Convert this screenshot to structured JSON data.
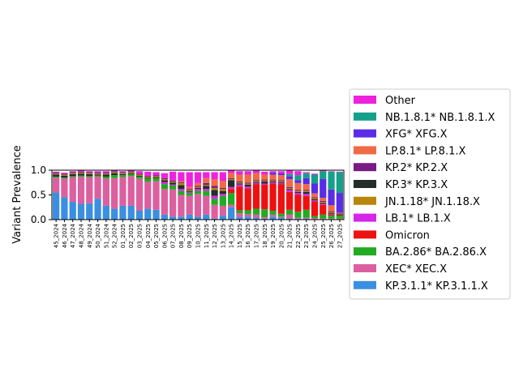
{
  "chart_data": {
    "type": "bar",
    "stacked": true,
    "ylabel": "Variant Prevalence",
    "xlabel": "",
    "ylim": [
      0,
      1.0
    ],
    "yticks": [
      "0.0",
      "0.5",
      "1.0"
    ],
    "grid": false,
    "legend_placement": "outside-right",
    "categories": [
      "45_2024",
      "46_2024",
      "47_2024",
      "48_2024",
      "49_2024",
      "50_2024",
      "51_2024",
      "52_2024",
      "01_2025",
      "02_2025",
      "03_2025",
      "04_2025",
      "05_2025",
      "06_2025",
      "07_2025",
      "08_2025",
      "09_2025",
      "10_2025",
      "11_2025",
      "12_2025",
      "13_2025",
      "14_2025",
      "15_2025",
      "16_2025",
      "17_2025",
      "18_2025",
      "19_2025",
      "20_2025",
      "21_2025",
      "22_2025",
      "23_2025",
      "24_2025",
      "25_2025",
      "26_2025",
      "27_2025"
    ],
    "series": [
      {
        "name": "KP.3.1.1* KP.3.1.1.X",
        "color": "#3a8fe0",
        "values": [
          0.55,
          0.45,
          0.36,
          0.32,
          0.33,
          0.42,
          0.28,
          0.22,
          0.28,
          0.28,
          0.18,
          0.22,
          0.2,
          0.1,
          0.06,
          0.06,
          0.1,
          0.06,
          0.1,
          0.02,
          0.08,
          0.25,
          0.05,
          0.06,
          0.04,
          0.02,
          0.06,
          0.04,
          0.02,
          0.02,
          0.02,
          0.01,
          0.01,
          0.01,
          0.01
        ]
      },
      {
        "name": "XEC* XEC.X",
        "color": "#dc5fa0",
        "values": [
          0.3,
          0.38,
          0.5,
          0.55,
          0.53,
          0.45,
          0.55,
          0.62,
          0.58,
          0.6,
          0.65,
          0.55,
          0.58,
          0.52,
          0.55,
          0.44,
          0.38,
          0.46,
          0.38,
          0.28,
          0.2,
          0.05,
          0.08,
          0.05,
          0.06,
          0.03,
          0.04,
          0.02,
          0.08,
          0.02,
          0.02,
          0.02,
          0.01,
          0.01,
          0.01
        ]
      },
      {
        "name": "BA.2.86* BA.2.86.X",
        "color": "#22aa22",
        "values": [
          0.02,
          0.02,
          0.02,
          0.02,
          0.02,
          0.02,
          0.04,
          0.06,
          0.04,
          0.04,
          0.04,
          0.06,
          0.06,
          0.1,
          0.08,
          0.08,
          0.06,
          0.06,
          0.1,
          0.12,
          0.2,
          0.24,
          0.06,
          0.08,
          0.12,
          0.16,
          0.08,
          0.06,
          0.1,
          0.12,
          0.16,
          0.04,
          0.08,
          0.06,
          0.06
        ]
      },
      {
        "name": "Omicron",
        "color": "#ee1111",
        "values": [
          0,
          0,
          0,
          0,
          0,
          0,
          0,
          0,
          0,
          0,
          0,
          0,
          0,
          0,
          0,
          0,
          0,
          0,
          0,
          0,
          0,
          0.08,
          0.48,
          0.44,
          0.5,
          0.5,
          0.55,
          0.6,
          0.36,
          0.34,
          0.28,
          0.3,
          0.2,
          0.02,
          0.01
        ]
      },
      {
        "name": "LB.1* LB.1.X",
        "color": "#d626e8",
        "values": [
          0,
          0,
          0,
          0,
          0,
          0,
          0,
          0,
          0,
          0,
          0,
          0,
          0,
          0.04,
          0.02,
          0.04,
          0.02,
          0.04,
          0.04,
          0.06,
          0.04,
          0.04,
          0.04,
          0.04,
          0.02,
          0.02,
          0.02,
          0.02,
          0.04,
          0.04,
          0.04,
          0.02,
          0.02,
          0.01,
          0
        ]
      },
      {
        "name": "KP.3* KP.3.X",
        "color": "#222e2a",
        "values": [
          0.04,
          0.04,
          0.04,
          0.04,
          0.04,
          0.02,
          0.04,
          0.04,
          0.02,
          0.02,
          0.02,
          0.02,
          0.02,
          0.04,
          0.04,
          0.08,
          0.02,
          0.02,
          0.06,
          0.12,
          0.06,
          0.14,
          0.02,
          0.04,
          0.02,
          0.04,
          0.02,
          0.02,
          0.02,
          0.02,
          0.04,
          0.02,
          0.02,
          0.02,
          0.02
        ]
      },
      {
        "name": "JN.1.18* JN.1.18.X",
        "color": "#b8860b",
        "values": [
          0.02,
          0.02,
          0.02,
          0.02,
          0.02,
          0.02,
          0.02,
          0.02,
          0.02,
          0.02,
          0.02,
          0.02,
          0.02,
          0.02,
          0.02,
          0.04,
          0.02,
          0.02,
          0.02,
          0.04,
          0.04,
          0.02,
          0.02,
          0.02,
          0.02,
          0.02,
          0.02,
          0.02,
          0.02,
          0.02,
          0.02,
          0.02,
          0.02,
          0.02,
          0.01
        ]
      },
      {
        "name": "KP.2* KP.2.X",
        "color": "#7a1a84",
        "values": [
          0.02,
          0.02,
          0.02,
          0.02,
          0.02,
          0.02,
          0.02,
          0.02,
          0.02,
          0.02,
          0.02,
          0.02,
          0.02,
          0.02,
          0.02,
          0.02,
          0.02,
          0.02,
          0.04,
          0.04,
          0.02,
          0.02,
          0.02,
          0.02,
          0.02,
          0.02,
          0.02,
          0.02,
          0.02,
          0.02,
          0.02,
          0.02,
          0.02,
          0.02,
          0.01
        ]
      },
      {
        "name": "LP.8.1* LP.8.1.X",
        "color": "#f06a45",
        "values": [
          0,
          0,
          0,
          0,
          0,
          0,
          0,
          0,
          0,
          0,
          0,
          0,
          0,
          0,
          0,
          0.02,
          0.04,
          0.06,
          0.1,
          0.14,
          0.14,
          0.1,
          0.14,
          0.16,
          0.14,
          0.1,
          0.1,
          0.1,
          0.16,
          0.14,
          0.12,
          0.08,
          0.06,
          0.12,
          0.01
        ]
      },
      {
        "name": "XFG* XFG.X",
        "color": "#5a2ce8",
        "values": [
          0,
          0,
          0,
          0,
          0,
          0,
          0,
          0,
          0,
          0,
          0,
          0,
          0,
          0,
          0,
          0,
          0,
          0,
          0,
          0,
          0,
          0,
          0,
          0,
          0,
          0,
          0.04,
          0.04,
          0.06,
          0.06,
          0.12,
          0.2,
          0.38,
          0.32,
          0.4
        ]
      },
      {
        "name": "NB.1.8.1* NB.1.8.1.X",
        "color": "#14a089",
        "values": [
          0,
          0,
          0,
          0,
          0,
          0,
          0,
          0,
          0,
          0,
          0,
          0,
          0,
          0,
          0,
          0,
          0,
          0,
          0,
          0,
          0,
          0,
          0,
          0,
          0,
          0,
          0,
          0,
          0.04,
          0.1,
          0.1,
          0.18,
          0.16,
          0.36,
          0.42
        ]
      },
      {
        "name": "Other",
        "color": "#ee22dd",
        "values": [
          0.02,
          0.02,
          0.02,
          0.03,
          0.02,
          0.03,
          0.03,
          0.02,
          0.02,
          0.02,
          0.05,
          0.08,
          0.06,
          0.1,
          0.18,
          0.18,
          0.3,
          0.22,
          0.12,
          0.14,
          0.18,
          0.06,
          0.07,
          0.07,
          0.06,
          0.06,
          0.03,
          0.04,
          0.08,
          0.08,
          0.02,
          0.02,
          0.02,
          0.01,
          0.01
        ]
      }
    ],
    "legend_order": [
      "Other",
      "NB.1.8.1* NB.1.8.1.X",
      "XFG* XFG.X",
      "LP.8.1* LP.8.1.X",
      "KP.2* KP.2.X",
      "KP.3* KP.3.X",
      "JN.1.18* JN.1.18.X",
      "LB.1* LB.1.X",
      "Omicron",
      "BA.2.86* BA.2.86.X",
      "XEC* XEC.X",
      "KP.3.1.1* KP.3.1.1.X"
    ]
  }
}
